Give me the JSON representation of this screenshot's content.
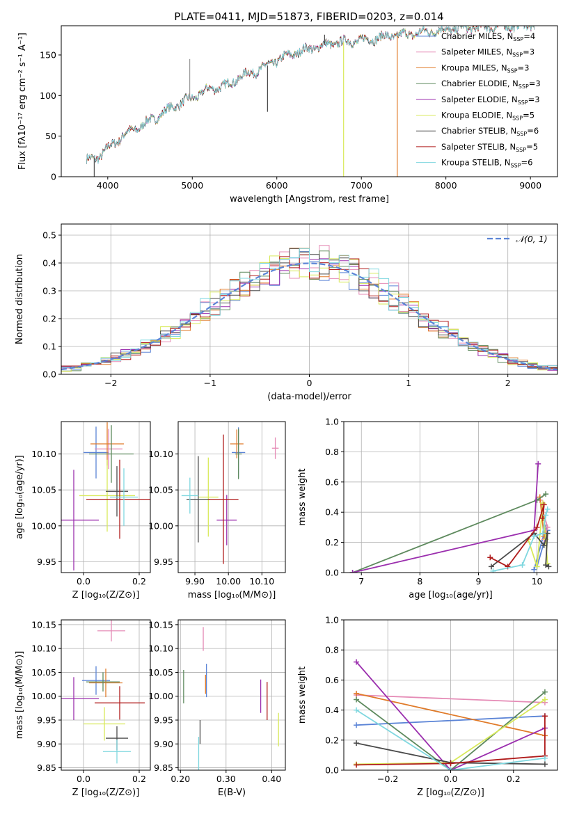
{
  "figure_title": "PLATE=0411, MJD=51873, FIBERID=0203, z=0.014",
  "colors": {
    "Chabrier MILES": "#5b84d6",
    "Salpeter MILES": "#e58bb6",
    "Kroupa MILES": "#e07b2a",
    "Chabrier ELODIE": "#5e8a5e",
    "Salpeter ELODIE": "#9b2fae",
    "Kroupa ELODIE": "#d8e95a",
    "Chabrier STELIB": "#4a4a4a",
    "Salpeter STELIB": "#b01c1c",
    "Kroupa STELIB": "#7fd7df"
  },
  "chart_data": [
    {
      "id": "spectrum",
      "type": "line",
      "title": "PLATE=0411, MJD=51873, FIBERID=0203, z=0.014",
      "xlabel": "wavelength [Angstrom, rest frame]",
      "ylabel": "Flux [fλ10⁻¹⁷ erg cm⁻² s⁻¹ A⁻¹]",
      "xlim": [
        3450,
        9320
      ],
      "ylim": [
        0,
        186
      ],
      "xticks": [
        4000,
        5000,
        6000,
        7000,
        8000,
        9000
      ],
      "yticks": [
        0,
        50,
        100,
        150
      ],
      "grid": false,
      "legend_position": "top-right",
      "legend": [
        {
          "label": "Chabrier MILES, N",
          "sub": "SSP",
          "tail": "=4",
          "color": "#5b84d6"
        },
        {
          "label": "Salpeter MILES, N",
          "sub": "SSP",
          "tail": "=3",
          "color": "#e58bb6"
        },
        {
          "label": "Kroupa MILES, N",
          "sub": "SSP",
          "tail": "=3",
          "color": "#e07b2a"
        },
        {
          "label": "Chabrier ELODIE, N",
          "sub": "SSP",
          "tail": "=3",
          "color": "#5e8a5e"
        },
        {
          "label": "Salpeter ELODIE, N",
          "sub": "SSP",
          "tail": "=3",
          "color": "#9b2fae"
        },
        {
          "label": "Kroupa ELODIE, N",
          "sub": "SSP",
          "tail": "=5",
          "color": "#d8e95a"
        },
        {
          "label": "Chabrier STELIB, N",
          "sub": "SSP",
          "tail": "=6",
          "color": "#4a4a4a"
        },
        {
          "label": "Salpeter STELIB, N",
          "sub": "SSP",
          "tail": "=5",
          "color": "#b01c1c"
        },
        {
          "label": "Kroupa STELIB, N",
          "sub": "SSP",
          "tail": "=6",
          "color": "#7fd7df"
        }
      ],
      "continuum": [
        [
          3750,
          20
        ],
        [
          3900,
          25
        ],
        [
          4000,
          35
        ],
        [
          4200,
          52
        ],
        [
          4400,
          63
        ],
        [
          4600,
          75
        ],
        [
          4800,
          88
        ],
        [
          5000,
          97
        ],
        [
          5200,
          108
        ],
        [
          5400,
          112
        ],
        [
          5600,
          125
        ],
        [
          5800,
          132
        ],
        [
          6000,
          143
        ],
        [
          6200,
          152
        ],
        [
          6400,
          158
        ],
        [
          6600,
          163
        ],
        [
          6800,
          166
        ],
        [
          7000,
          168
        ],
        [
          7200,
          171
        ],
        [
          7400,
          174
        ],
        [
          7600,
          176
        ],
        [
          7800,
          179
        ],
        [
          8000,
          181
        ],
        [
          8200,
          183
        ],
        [
          8400,
          184
        ],
        [
          8600,
          185
        ],
        [
          8800,
          186
        ],
        [
          9050,
          187
        ]
      ],
      "features": [
        {
          "x": 3840,
          "y": 0,
          "color": "#4a4a4a"
        },
        {
          "x": 4970,
          "y": 145,
          "color": "#999999"
        },
        {
          "x": 5890,
          "y": 80,
          "color": "#4a4a4a"
        },
        {
          "x": 6565,
          "y": 175,
          "color": "#4a4a4a"
        },
        {
          "x": 6790,
          "y": 0,
          "color": "#d8e95a"
        },
        {
          "x": 7425,
          "y": 0,
          "color": "#e07b2a"
        }
      ]
    },
    {
      "id": "residuals",
      "type": "line",
      "xlabel": "(data-model)/error",
      "ylabel": "Normed distribution",
      "xlim": [
        -2.5,
        2.5
      ],
      "ylim": [
        0,
        0.54
      ],
      "xticks": [
        -2,
        -1,
        0,
        1,
        2
      ],
      "yticks": [
        0.0,
        0.1,
        0.2,
        0.3,
        0.4,
        0.5
      ],
      "grid": true,
      "legend_position": "top-right",
      "legend": [
        {
          "label": "𝒩(0, 1)",
          "color": "#5b84d6",
          "style": "dashed"
        }
      ],
      "reference_curve": {
        "name": "𝒩(0, 1)",
        "mean": 0,
        "sigma": 1
      },
      "histogram_bin_width": 0.1
    },
    {
      "id": "age-vs-Z",
      "type": "scatter",
      "xlabel": "Z [log₁₀(Z/Z⊙)]",
      "ylabel": "age  [log₁₀(age/yr)]",
      "xlim": [
        -0.08,
        0.24
      ],
      "ylim": [
        9.935,
        10.145
      ],
      "xticks": [
        0.0,
        0.2
      ],
      "yticks": [
        9.95,
        10.0,
        10.05,
        10.1
      ],
      "grid": true,
      "points": [
        {
          "series": "Chabrier MILES",
          "x": 0.045,
          "y": 10.102,
          "xerr": 0.045,
          "yerr": 0.036
        },
        {
          "series": "Salpeter MILES",
          "x": 0.09,
          "y": 10.107,
          "xerr": 0.05,
          "yerr": 0.028
        },
        {
          "series": "Kroupa MILES",
          "x": 0.085,
          "y": 10.114,
          "xerr": 0.06,
          "yerr": 0.03
        },
        {
          "series": "Chabrier ELODIE",
          "x": 0.1,
          "y": 10.1,
          "xerr": 0.08,
          "yerr": 0.04
        },
        {
          "series": "Salpeter ELODIE",
          "x": -0.035,
          "y": 10.008,
          "xerr": 0.09,
          "yerr": 0.07
        },
        {
          "series": "Kroupa ELODIE",
          "x": 0.085,
          "y": 10.042,
          "xerr": 0.1,
          "yerr": 0.05
        },
        {
          "series": "Chabrier STELIB",
          "x": 0.12,
          "y": 10.048,
          "xerr": 0.04,
          "yerr": 0.035
        },
        {
          "series": "Salpeter STELIB",
          "x": 0.13,
          "y": 10.037,
          "xerr": 0.12,
          "yerr": 0.055
        },
        {
          "series": "Kroupa STELIB",
          "x": 0.145,
          "y": 10.04,
          "xerr": 0.05,
          "yerr": 0.04
        }
      ]
    },
    {
      "id": "age-vs-mass",
      "type": "scatter",
      "xlabel": "mass [log₁₀(M/M⊙)]",
      "ylabel": "",
      "xlim": [
        9.85,
        10.17
      ],
      "ylim": [
        9.935,
        10.145
      ],
      "xticks": [
        9.9,
        10.0,
        10.1
      ],
      "yticks": [
        9.95,
        10.0,
        10.05,
        10.1
      ],
      "grid": true,
      "points": [
        {
          "series": "Chabrier MILES",
          "x": 10.03,
          "y": 10.102,
          "xerr": 0.02,
          "yerr": 0.035
        },
        {
          "series": "Salpeter MILES",
          "x": 10.14,
          "y": 10.108,
          "xerr": 0.01,
          "yerr": 0.015
        },
        {
          "series": "Kroupa MILES",
          "x": 10.025,
          "y": 10.114,
          "xerr": 0.02,
          "yerr": 0.02
        },
        {
          "series": "Chabrier ELODIE",
          "x": 10.03,
          "y": 10.1,
          "xerr": 0.01,
          "yerr": 0.035
        },
        {
          "series": "Salpeter ELODIE",
          "x": 9.995,
          "y": 10.008,
          "xerr": 0.03,
          "yerr": 0.035
        },
        {
          "series": "Kroupa ELODIE",
          "x": 9.94,
          "y": 10.04,
          "xerr": 0.03,
          "yerr": 0.055
        },
        {
          "series": "Chabrier STELIB",
          "x": 9.91,
          "y": 10.037,
          "xerr": 0.035,
          "yerr": 0.06
        },
        {
          "series": "Salpeter STELIB",
          "x": 9.985,
          "y": 10.037,
          "xerr": 0.045,
          "yerr": 0.09
        },
        {
          "series": "Kroupa STELIB",
          "x": 9.885,
          "y": 10.042,
          "xerr": 0.025,
          "yerr": 0.025
        }
      ]
    },
    {
      "id": "weight-vs-age",
      "type": "line",
      "xlabel": "age  [log₁₀(age/yr)]",
      "ylabel": "mass weight",
      "xlim": [
        6.7,
        10.35
      ],
      "ylim": [
        0,
        1.0
      ],
      "xticks": [
        7,
        8,
        9,
        10
      ],
      "yticks": [
        0.0,
        0.2,
        0.4,
        0.6,
        0.8,
        1.0
      ],
      "grid": true,
      "series": [
        {
          "name": "Chabrier MILES",
          "points": [
            [
              9.95,
              0.02
            ],
            [
              10.15,
              0.3
            ],
            [
              10.18,
              0.28
            ],
            [
              10.0,
              0.04
            ]
          ]
        },
        {
          "name": "Salpeter MILES",
          "points": [
            [
              10.12,
              0.22
            ],
            [
              10.18,
              0.3
            ],
            [
              10.05,
              0.48
            ]
          ]
        },
        {
          "name": "Kroupa MILES",
          "points": [
            [
              10.05,
              0.5
            ],
            [
              10.12,
              0.24
            ],
            [
              10.15,
              0.26
            ]
          ]
        },
        {
          "name": "Chabrier ELODIE",
          "points": [
            [
              6.85,
              0.0
            ],
            [
              10.0,
              0.48
            ],
            [
              10.15,
              0.52
            ]
          ]
        },
        {
          "name": "Salpeter ELODIE",
          "points": [
            [
              6.85,
              0.0
            ],
            [
              9.95,
              0.28
            ],
            [
              10.02,
              0.72
            ]
          ]
        },
        {
          "name": "Kroupa ELODIE",
          "points": [
            [
              9.85,
              0.22
            ],
            [
              10.0,
              0.04
            ],
            [
              10.1,
              0.46
            ],
            [
              10.18,
              0.06
            ],
            [
              10.15,
              0.22
            ]
          ]
        },
        {
          "name": "Chabrier STELIB",
          "points": [
            [
              9.22,
              0.04
            ],
            [
              9.95,
              0.26
            ],
            [
              10.12,
              0.18
            ],
            [
              10.18,
              0.26
            ],
            [
              10.15,
              0.05
            ],
            [
              10.2,
              0.04
            ]
          ]
        },
        {
          "name": "Salpeter STELIB",
          "points": [
            [
              9.2,
              0.1
            ],
            [
              9.5,
              0.04
            ],
            [
              10.0,
              0.3
            ],
            [
              10.12,
              0.45
            ],
            [
              10.1,
              0.36
            ]
          ]
        },
        {
          "name": "Kroupa STELIB",
          "points": [
            [
              9.25,
              0.01
            ],
            [
              9.75,
              0.05
            ],
            [
              9.95,
              0.24
            ],
            [
              10.1,
              0.26
            ],
            [
              10.15,
              0.38
            ],
            [
              10.18,
              0.42
            ]
          ]
        }
      ]
    },
    {
      "id": "mass-vs-Z",
      "type": "scatter",
      "xlabel": "Z [log₁₀(Z/Z⊙)]",
      "ylabel": "mass [log₁₀(M/M⊙)]",
      "xlim": [
        -0.08,
        0.24
      ],
      "ylim": [
        9.845,
        10.16
      ],
      "xticks": [
        0.0,
        0.2
      ],
      "yticks": [
        9.85,
        9.9,
        9.95,
        10.0,
        10.05,
        10.1,
        10.15
      ],
      "grid": true,
      "points": [
        {
          "series": "Chabrier MILES",
          "x": 0.045,
          "y": 10.033,
          "xerr": 0.05,
          "yerr": 0.03
        },
        {
          "series": "Salpeter MILES",
          "x": 0.1,
          "y": 10.137,
          "xerr": 0.05,
          "yerr": 0.022
        },
        {
          "series": "Kroupa MILES",
          "x": 0.08,
          "y": 10.028,
          "xerr": 0.06,
          "yerr": 0.03
        },
        {
          "series": "Chabrier ELODIE",
          "x": 0.07,
          "y": 10.03,
          "xerr": 0.06,
          "yerr": 0.02
        },
        {
          "series": "Salpeter ELODIE",
          "x": -0.035,
          "y": 9.995,
          "xerr": 0.09,
          "yerr": 0.045
        },
        {
          "series": "Kroupa ELODIE",
          "x": 0.075,
          "y": 9.942,
          "xerr": 0.075,
          "yerr": 0.035
        },
        {
          "series": "Chabrier STELIB",
          "x": 0.12,
          "y": 9.912,
          "xerr": 0.04,
          "yerr": 0.025
        },
        {
          "series": "Salpeter STELIB",
          "x": 0.13,
          "y": 9.986,
          "xerr": 0.09,
          "yerr": 0.035
        },
        {
          "series": "Kroupa STELIB",
          "x": 0.12,
          "y": 9.884,
          "xerr": 0.05,
          "yerr": 0.025
        }
      ]
    },
    {
      "id": "mass-vs-EBV",
      "type": "scatter",
      "xlabel": "E(B-V)",
      "ylabel": "",
      "xlim": [
        0.195,
        0.43
      ],
      "ylim": [
        9.845,
        10.16
      ],
      "xticks": [
        0.2,
        0.3,
        0.4
      ],
      "yticks": [
        9.85,
        9.9,
        9.95,
        10.0,
        10.05,
        10.1,
        10.15
      ],
      "grid": true,
      "points": [
        {
          "series": "Chabrier MILES",
          "x": 0.257,
          "y": 10.033,
          "xerr": 0.0,
          "yerr": 0.035
        },
        {
          "series": "Salpeter MILES",
          "x": 0.25,
          "y": 10.12,
          "xerr": 0.0,
          "yerr": 0.025
        },
        {
          "series": "Kroupa MILES",
          "x": 0.255,
          "y": 10.025,
          "xerr": 0.0,
          "yerr": 0.02
        },
        {
          "series": "Chabrier ELODIE",
          "x": 0.207,
          "y": 10.02,
          "xerr": 0.0,
          "yerr": 0.035
        },
        {
          "series": "Salpeter ELODIE",
          "x": 0.376,
          "y": 10.0,
          "xerr": 0.0,
          "yerr": 0.035
        },
        {
          "series": "Kroupa ELODIE",
          "x": 0.415,
          "y": 9.93,
          "xerr": 0.0,
          "yerr": 0.035
        },
        {
          "series": "Chabrier STELIB",
          "x": 0.243,
          "y": 9.925,
          "xerr": 0.0,
          "yerr": 0.025
        },
        {
          "series": "Salpeter STELIB",
          "x": 0.39,
          "y": 9.99,
          "xerr": 0.0,
          "yerr": 0.04
        },
        {
          "series": "Kroupa STELIB",
          "x": 0.24,
          "y": 9.88,
          "xerr": 0.0,
          "yerr": 0.035
        }
      ]
    },
    {
      "id": "weight-vs-Z",
      "type": "line",
      "xlabel": "Z [log₁₀(Z/Z⊙)]",
      "ylabel": "mass weight",
      "xlim": [
        -0.34,
        0.34
      ],
      "ylim": [
        0,
        1.0
      ],
      "xticks": [
        -0.2,
        0.0,
        0.2
      ],
      "yticks": [
        0.0,
        0.2,
        0.4,
        0.6,
        0.8,
        1.0
      ],
      "grid": true,
      "series": [
        {
          "name": "Chabrier MILES",
          "points": [
            [
              -0.3,
              0.3
            ],
            [
              0.3,
              0.36
            ]
          ]
        },
        {
          "name": "Salpeter MILES",
          "points": [
            [
              -0.3,
              0.5
            ],
            [
              0.3,
              0.45
            ]
          ]
        },
        {
          "name": "Kroupa MILES",
          "points": [
            [
              -0.3,
              0.51
            ],
            [
              0.3,
              0.23
            ]
          ]
        },
        {
          "name": "Chabrier ELODIE",
          "points": [
            [
              -0.3,
              0.47
            ],
            [
              0.0,
              0.0
            ],
            [
              0.3,
              0.52
            ]
          ]
        },
        {
          "name": "Salpeter ELODIE",
          "points": [
            [
              -0.3,
              0.72
            ],
            [
              0.0,
              0.0
            ],
            [
              0.3,
              0.28
            ]
          ]
        },
        {
          "name": "Kroupa ELODIE",
          "points": [
            [
              -0.3,
              0.04
            ],
            [
              0.0,
              0.05
            ],
            [
              0.3,
              0.47
            ]
          ]
        },
        {
          "name": "Chabrier STELIB",
          "points": [
            [
              -0.3,
              0.18
            ],
            [
              0.0,
              0.05
            ],
            [
              0.3,
              0.04
            ]
          ]
        },
        {
          "name": "Salpeter STELIB",
          "points": [
            [
              -0.3,
              0.035
            ],
            [
              0.0,
              0.045
            ],
            [
              0.3,
              0.095
            ],
            [
              0.3,
              0.36
            ]
          ]
        },
        {
          "name": "Kroupa STELIB",
          "points": [
            [
              -0.3,
              0.4
            ],
            [
              0.0,
              0.0
            ],
            [
              0.3,
              0.08
            ]
          ]
        }
      ]
    }
  ]
}
